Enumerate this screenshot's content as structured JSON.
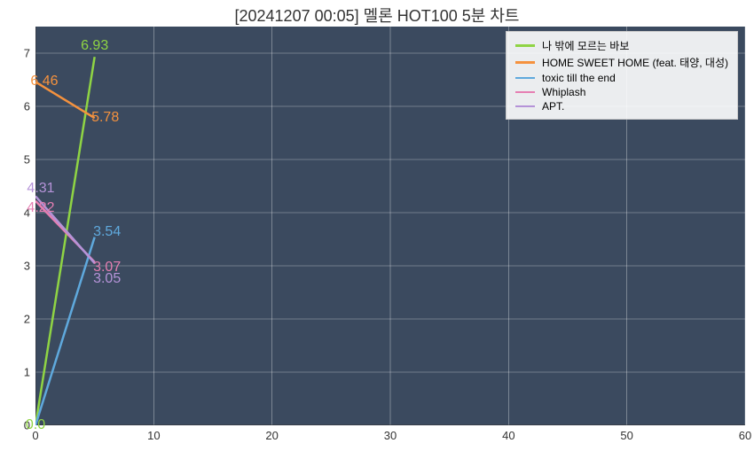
{
  "chart": {
    "type": "line",
    "title": "[20241207 00:05] 멜론 HOT100 5분 차트",
    "title_fontsize": 18,
    "title_color": "#333333",
    "plot_background": "#3b4a5f",
    "page_background": "#ffffff",
    "grid_color": "#ffffff",
    "grid_width": 0.6,
    "axis_color": "#333333",
    "tick_fontsize": 13,
    "label_fontsize": 16,
    "line_width": 2.5,
    "xlim": [
      0,
      60
    ],
    "ylim": [
      0,
      7.5
    ],
    "xticks": [
      0,
      10,
      20,
      30,
      40,
      50,
      60
    ],
    "yticks": [
      0,
      1,
      2,
      3,
      4,
      5,
      6,
      7
    ],
    "series": [
      {
        "name": "나 밖에 모르는 바보",
        "color": "#8fd444",
        "points": [
          [
            0,
            0.0
          ],
          [
            5,
            6.93
          ]
        ],
        "labels": [
          {
            "x": 0,
            "y": 0.0,
            "text": "0.0",
            "offset_x": 0,
            "offset_y": 0
          },
          {
            "x": 5,
            "y": 6.93,
            "text": "6.93",
            "offset_x": 0,
            "offset_y": -12
          }
        ]
      },
      {
        "name": "HOME SWEET HOME (feat. 태양, 대성)",
        "color": "#f5923e",
        "points": [
          [
            0,
            6.46
          ],
          [
            5,
            5.78
          ]
        ],
        "labels": [
          {
            "x": 0,
            "y": 6.46,
            "text": "6.46",
            "offset_x": 10,
            "offset_y": 0
          },
          {
            "x": 5,
            "y": 5.78,
            "text": "5.78",
            "offset_x": 12,
            "offset_y": 0
          }
        ]
      },
      {
        "name": "toxic till the end",
        "color": "#5fa9dd",
        "points": [
          [
            0,
            0.0
          ],
          [
            5,
            3.54
          ]
        ],
        "labels": [
          {
            "x": 5,
            "y": 3.54,
            "text": "3.54",
            "offset_x": 14,
            "offset_y": -6
          }
        ]
      },
      {
        "name": "Whiplash",
        "color": "#e67fb3",
        "points": [
          [
            0,
            4.22
          ],
          [
            5,
            3.07
          ]
        ],
        "labels": [
          {
            "x": 0,
            "y": 4.22,
            "text": "4.22",
            "offset_x": 6,
            "offset_y": 8
          },
          {
            "x": 5,
            "y": 3.07,
            "text": "3.07",
            "offset_x": 14,
            "offset_y": 6
          }
        ]
      },
      {
        "name": "APT.",
        "color": "#b593d8",
        "points": [
          [
            0,
            4.31
          ],
          [
            5,
            3.05
          ]
        ],
        "labels": [
          {
            "x": 0,
            "y": 4.31,
            "text": "4.31",
            "offset_x": 6,
            "offset_y": -8
          },
          {
            "x": 5,
            "y": 3.05,
            "text": "3.05",
            "offset_x": 14,
            "offset_y": 18
          }
        ]
      }
    ],
    "legend": {
      "position": "top-right",
      "background": "rgba(255,255,255,0.9)",
      "border_color": "#cccccc",
      "fontsize": 12
    }
  }
}
